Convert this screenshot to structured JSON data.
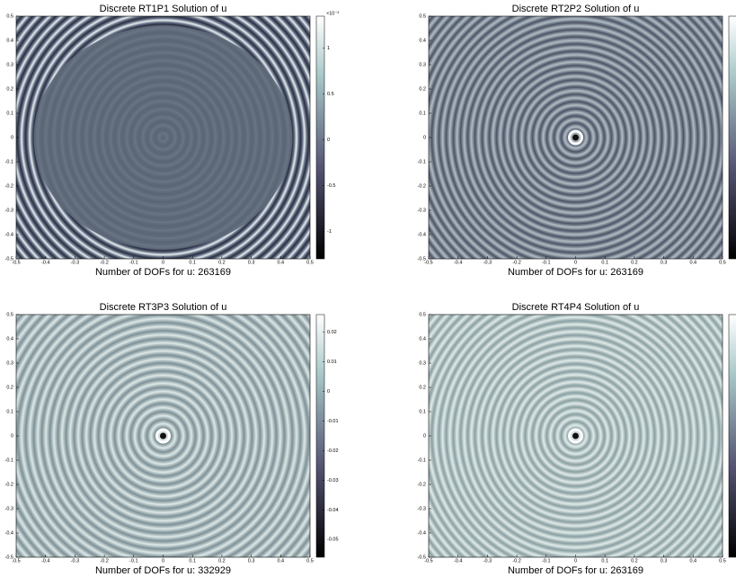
{
  "chart_data": [
    {
      "type": "field",
      "title": "Discrete RT1P1 Solution of u",
      "xlabel": "Number of DOFs for u: 263169",
      "xlim": [
        -0.5,
        0.5
      ],
      "ylim": [
        -0.5,
        0.5
      ],
      "xticks": [
        -0.5,
        -0.4,
        -0.3,
        -0.2,
        -0.1,
        0,
        0.1,
        0.2,
        0.3,
        0.4,
        0.5
      ],
      "yticks": [
        -0.5,
        -0.4,
        -0.3,
        -0.2,
        -0.1,
        0,
        0.1,
        0.2,
        0.3,
        0.4,
        0.5
      ],
      "clim": [
        -1.3,
        1.35
      ],
      "cticks": [
        -1,
        -0.5,
        0,
        0.5,
        1
      ],
      "cexponent": "×10⁻³"
    },
    {
      "type": "field",
      "title": "Discrete RT2P2 Solution of u",
      "xlabel": "Number of DOFs for u: 263169",
      "xlim": [
        -0.5,
        0.5
      ],
      "ylim": [
        -0.5,
        0.5
      ],
      "xticks": [
        -0.5,
        -0.4,
        -0.3,
        -0.2,
        -0.1,
        0,
        0.1,
        0.2,
        0.3,
        0.4,
        0.5
      ],
      "yticks": [
        -0.5,
        -0.4,
        -0.3,
        -0.2,
        -0.1,
        0,
        0.1,
        0.2,
        0.3,
        0.4,
        0.5
      ]
    },
    {
      "type": "field",
      "title": "Discrete RT3P3 Solution of u",
      "xlabel": "Number of DOFs for u: 332929",
      "xlim": [
        -0.5,
        0.5
      ],
      "ylim": [
        -0.5,
        0.5
      ],
      "xticks": [
        -0.5,
        -0.4,
        -0.3,
        -0.2,
        -0.1,
        0,
        0.1,
        0.2,
        0.3,
        0.4,
        0.5
      ],
      "yticks": [
        -0.5,
        -0.4,
        -0.3,
        -0.2,
        -0.1,
        0,
        0.1,
        0.2,
        0.3,
        0.4,
        0.5
      ],
      "clim": [
        -0.056,
        0.026
      ],
      "cticks": [
        -0.05,
        -0.04,
        -0.03,
        -0.02,
        -0.01,
        0,
        0.01,
        0.02
      ]
    },
    {
      "type": "field",
      "title": "Discrete RT4P4 Solution of u",
      "xlabel": "Number of DOFs for u: 263169",
      "xlim": [
        -0.5,
        0.5
      ],
      "ylim": [
        -0.5,
        0.5
      ],
      "xticks": [
        -0.5,
        -0.4,
        -0.3,
        -0.2,
        -0.1,
        0,
        0.1,
        0.2,
        0.3,
        0.4,
        0.5
      ],
      "yticks": [
        -0.5,
        -0.4,
        -0.3,
        -0.2,
        -0.1,
        0,
        0.1,
        0.2,
        0.3,
        0.4,
        0.5
      ]
    }
  ]
}
